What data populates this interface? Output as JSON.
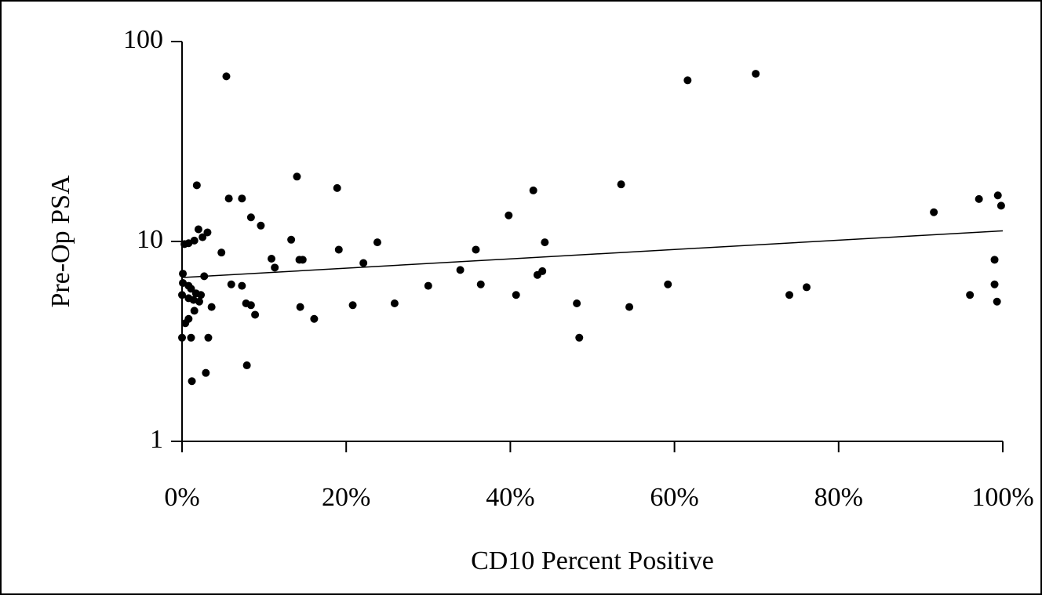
{
  "chart_data": {
    "type": "scatter",
    "x_label": "CD10 Percent Positive",
    "y_label": "Pre-Op PSA",
    "log_y": true,
    "color": "#000000",
    "xlim": [
      0,
      100
    ],
    "xticks": [
      {
        "value": 0,
        "label": "0%"
      },
      {
        "value": 20,
        "label": "20%"
      },
      {
        "value": 40,
        "label": "40%"
      },
      {
        "value": 60,
        "label": "60%"
      },
      {
        "value": 80,
        "label": "80%"
      },
      {
        "value": 100,
        "label": "100%"
      }
    ],
    "ylim": [
      1,
      100
    ],
    "yticks": [
      1,
      10,
      100
    ],
    "x": [
      5.4,
      61.6,
      69.9,
      1.8,
      14.0,
      5.7,
      7.3,
      18.9,
      42.8,
      53.5,
      97.1,
      99.4,
      99.8,
      91.6,
      39.8,
      8.4,
      9.6,
      2.0,
      3.1,
      2.5,
      1.5,
      0.8,
      0.3,
      13.3,
      4.8,
      19.1,
      23.8,
      35.8,
      44.2,
      10.9,
      11.3,
      14.3,
      14.7,
      22.1,
      33.9,
      43.3,
      43.9,
      99.0,
      0.1,
      2.7,
      0.1,
      0.8,
      6.0,
      7.3,
      30.0,
      36.4,
      59.2,
      76.1,
      99.0,
      1.1,
      1.7,
      0,
      0.8,
      1.4,
      2.3,
      40.7,
      74.0,
      96.0,
      99.3,
      2.1,
      3.6,
      7.8,
      8.4,
      20.8,
      25.9,
      48.1,
      14.4,
      54.5,
      1.5,
      8.9,
      0.8,
      0.4,
      16.1,
      0,
      1.1,
      3.2,
      48.4,
      7.9,
      2.9,
      1.2
    ],
    "values": [
      67,
      64,
      69,
      19.1,
      21.1,
      16.4,
      16.4,
      18.5,
      18.0,
      19.3,
      16.3,
      17.0,
      15.1,
      14.0,
      13.5,
      13.2,
      12.0,
      11.5,
      11.1,
      10.5,
      10.1,
      9.8,
      9.7,
      10.2,
      8.8,
      9.1,
      9.9,
      9.1,
      9.9,
      8.2,
      7.4,
      8.1,
      8.1,
      7.8,
      7.2,
      6.8,
      7.1,
      8.1,
      6.9,
      6.7,
      6.2,
      6.0,
      6.1,
      6.0,
      6.0,
      6.1,
      6.1,
      5.9,
      6.1,
      5.8,
      5.5,
      5.4,
      5.2,
      5.1,
      5.4,
      5.4,
      5.4,
      5.4,
      5.0,
      5.0,
      4.7,
      4.9,
      4.8,
      4.8,
      4.9,
      4.9,
      4.7,
      4.7,
      4.5,
      4.3,
      4.1,
      3.9,
      4.1,
      3.3,
      3.3,
      3.3,
      3.3,
      2.4,
      2.2,
      2.0
    ],
    "trendline": {
      "x": [
        0,
        100
      ],
      "y": [
        6.6,
        11.3
      ]
    }
  }
}
